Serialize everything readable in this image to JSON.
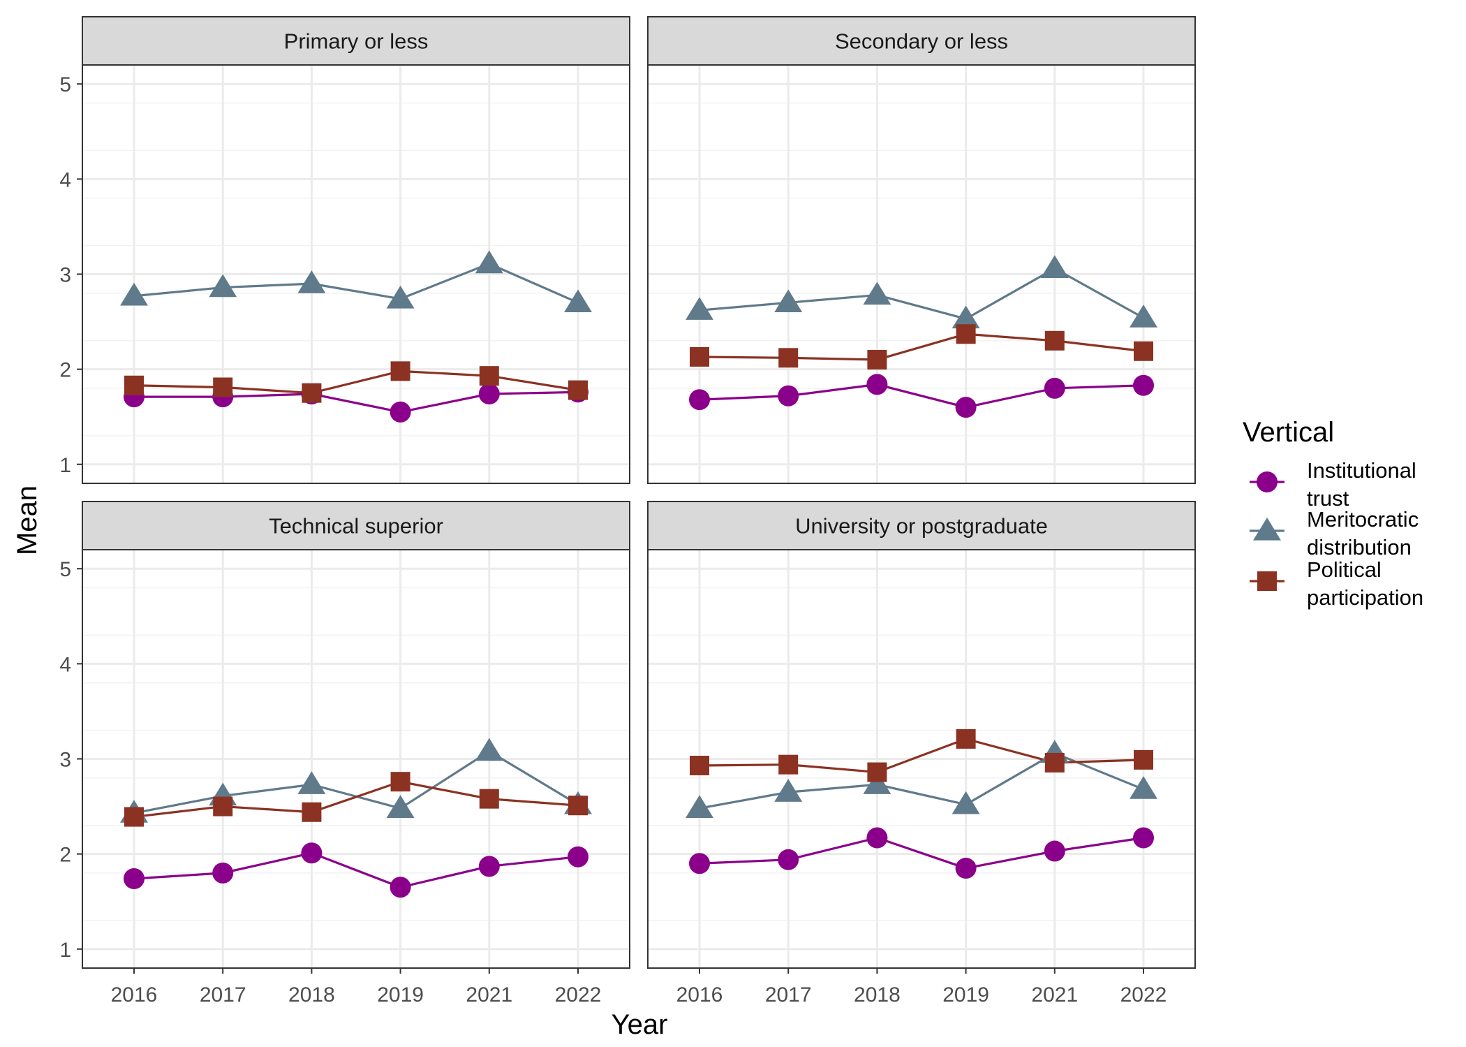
{
  "chart_data": {
    "type": "line",
    "xlabel": "Year",
    "ylabel": "Mean",
    "ylim": [
      0.8,
      5.2
    ],
    "yticks": [
      1,
      2,
      3,
      4,
      5
    ],
    "categories": [
      "2016",
      "2017",
      "2018",
      "2019",
      "2021",
      "2022"
    ],
    "grid": true,
    "legend": {
      "title": "Vertical",
      "placement": "right",
      "entries": [
        {
          "label_lines": [
            "Institutional",
            "trust"
          ],
          "shape": "circle",
          "color": "#8B008B"
        },
        {
          "label_lines": [
            "Meritocratic",
            "distribution"
          ],
          "shape": "triangle",
          "color": "#5F7A8B"
        },
        {
          "label_lines": [
            "Political",
            "participation"
          ],
          "shape": "square",
          "color": "#8B3222"
        }
      ]
    },
    "panels": [
      {
        "title": "Primary or less",
        "series": [
          {
            "name": "Institutional trust",
            "values": [
              1.71,
              1.71,
              1.74,
              1.55,
              1.74,
              1.76
            ]
          },
          {
            "name": "Meritocratic distribution",
            "values": [
              2.77,
              2.86,
              2.9,
              2.74,
              3.11,
              2.7
            ]
          },
          {
            "name": "Political participation",
            "values": [
              1.83,
              1.81,
              1.75,
              1.98,
              1.93,
              1.78
            ]
          }
        ]
      },
      {
        "title": "Secondary or less",
        "series": [
          {
            "name": "Institutional trust",
            "values": [
              1.68,
              1.72,
              1.84,
              1.6,
              1.8,
              1.83
            ]
          },
          {
            "name": "Meritocratic distribution",
            "values": [
              2.62,
              2.7,
              2.78,
              2.53,
              3.06,
              2.54
            ]
          },
          {
            "name": "Political participation",
            "values": [
              2.13,
              2.12,
              2.1,
              2.37,
              2.3,
              2.19
            ]
          }
        ]
      },
      {
        "title": "Technical superior",
        "series": [
          {
            "name": "Institutional trust",
            "values": [
              1.74,
              1.8,
              2.01,
              1.65,
              1.87,
              1.97
            ]
          },
          {
            "name": "Meritocratic distribution",
            "values": [
              2.43,
              2.61,
              2.73,
              2.48,
              3.08,
              2.52
            ]
          },
          {
            "name": "Political participation",
            "values": [
              2.39,
              2.5,
              2.44,
              2.76,
              2.58,
              2.51
            ]
          }
        ]
      },
      {
        "title": "University or postgraduate",
        "series": [
          {
            "name": "Institutional trust",
            "values": [
              1.9,
              1.94,
              2.17,
              1.85,
              2.03,
              2.17
            ]
          },
          {
            "name": "Meritocratic distribution",
            "values": [
              2.48,
              2.65,
              2.73,
              2.52,
              3.06,
              2.68
            ]
          },
          {
            "name": "Political participation",
            "values": [
              2.93,
              2.94,
              2.86,
              3.21,
              2.96,
              2.99
            ]
          }
        ]
      }
    ]
  }
}
